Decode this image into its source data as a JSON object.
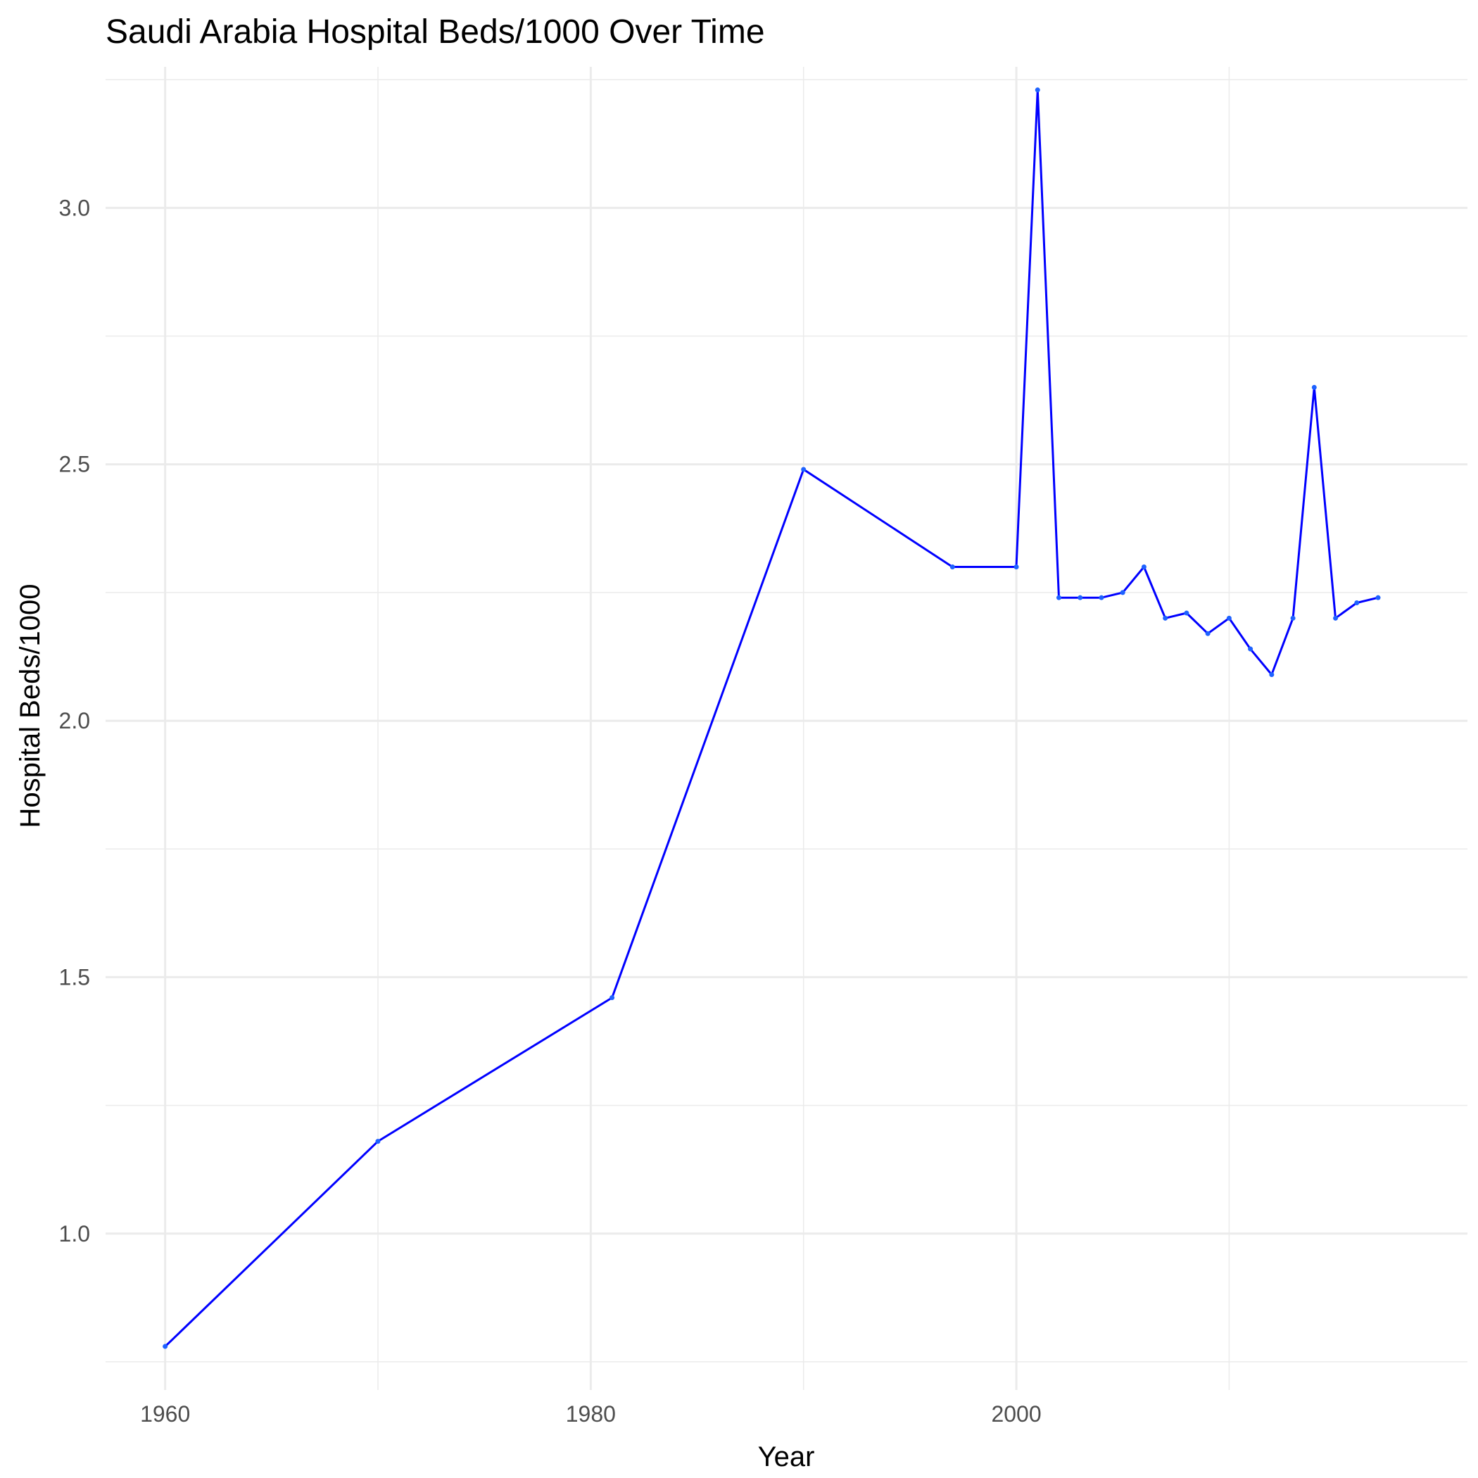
{
  "chart_data": {
    "type": "line",
    "title": "Saudi Arabia Hospital Beds/1000 Over Time",
    "xlabel": "Year",
    "ylabel": "Hospital Beds/1000",
    "xlim": [
      1957.2,
      2021.2
    ],
    "ylim": [
      0.695,
      3.275
    ],
    "x_ticks": [
      1960,
      1980,
      2000
    ],
    "y_ticks": [
      1.0,
      1.5,
      2.0,
      2.5,
      3.0
    ],
    "x_tick_labels": [
      "1960",
      "1980",
      "2000"
    ],
    "y_tick_labels": [
      "1.0",
      "1.5",
      "2.0",
      "2.5",
      "3.0"
    ],
    "grid": true,
    "series": [
      {
        "color": "#0000ff",
        "x": [
          1960,
          1970,
          1981,
          1990,
          1997,
          2000,
          2001,
          2002,
          2003,
          2004,
          2005,
          2006,
          2007,
          2008,
          2009,
          2010,
          2011,
          2012,
          2013,
          2014,
          2015,
          2016,
          2017
        ],
        "y": [
          0.78,
          1.18,
          1.46,
          2.49,
          2.3,
          2.3,
          3.23,
          2.24,
          2.24,
          2.24,
          2.25,
          2.3,
          2.2,
          2.21,
          2.17,
          2.2,
          2.14,
          2.09,
          2.2,
          2.65,
          2.2,
          2.23,
          2.24
        ]
      }
    ]
  }
}
